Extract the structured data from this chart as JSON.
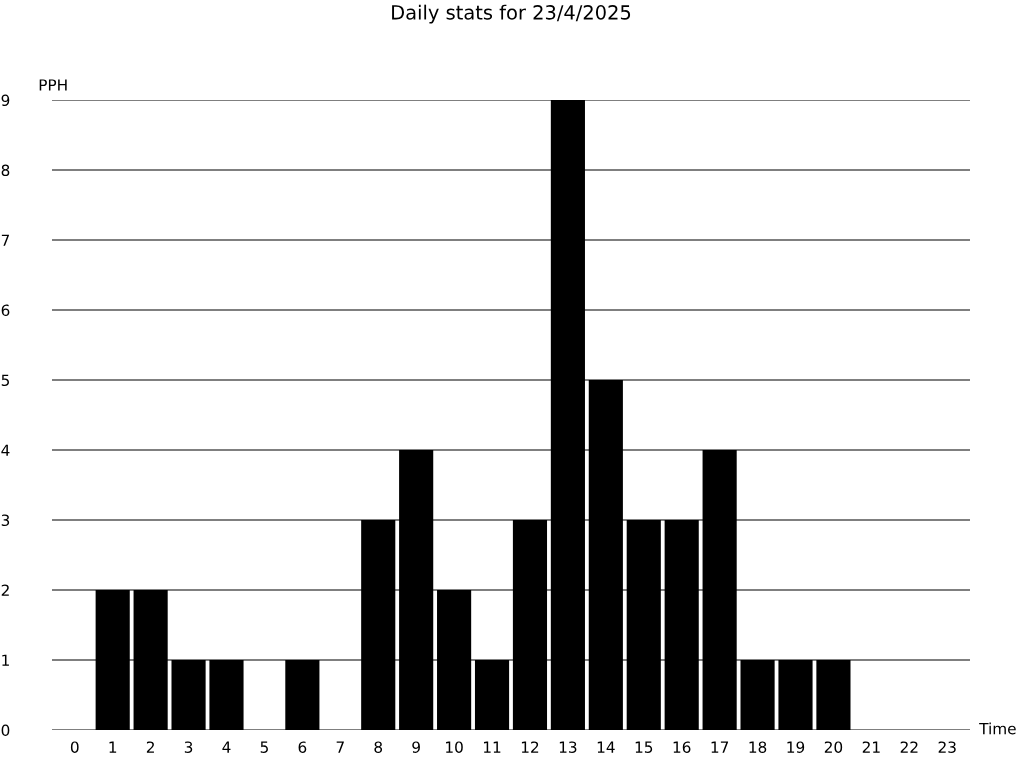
{
  "chart_data": {
    "type": "bar",
    "title": "Daily stats for 23/4/2025",
    "xlabel": "Time",
    "ylabel": "PPH",
    "categories": [
      "0",
      "1",
      "2",
      "3",
      "4",
      "5",
      "6",
      "7",
      "8",
      "9",
      "10",
      "11",
      "12",
      "13",
      "14",
      "15",
      "16",
      "17",
      "18",
      "19",
      "20",
      "21",
      "22",
      "23"
    ],
    "values": [
      0,
      2,
      2,
      1,
      1,
      0,
      1,
      0,
      3,
      4,
      2,
      1,
      3,
      9,
      5,
      3,
      3,
      4,
      1,
      1,
      1,
      0,
      0,
      0
    ],
    "color": "#000000",
    "ylim": [
      0,
      9
    ],
    "yticks": [
      0,
      1,
      2,
      3,
      4,
      5,
      6,
      7,
      8,
      9
    ],
    "grid": "y",
    "legend": false
  }
}
